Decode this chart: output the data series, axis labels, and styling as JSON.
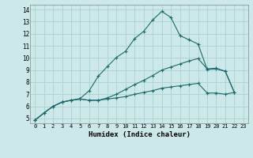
{
  "xlabel": "Humidex (Indice chaleur)",
  "bg_color": "#cce8e8",
  "grid_color": "#aed4d4",
  "line_color": "#1a6b6b",
  "xlim": [
    -0.5,
    23.5
  ],
  "ylim": [
    4.6,
    14.4
  ],
  "xticks": [
    0,
    1,
    2,
    3,
    4,
    5,
    6,
    7,
    8,
    9,
    10,
    11,
    12,
    13,
    14,
    15,
    16,
    17,
    18,
    19,
    20,
    21,
    22,
    23
  ],
  "yticks": [
    5,
    6,
    7,
    8,
    9,
    10,
    11,
    12,
    13,
    14
  ],
  "line1_y": [
    4.85,
    5.45,
    6.0,
    6.35,
    6.5,
    6.65,
    7.3,
    8.5,
    9.3,
    10.05,
    10.55,
    11.6,
    12.2,
    13.15,
    13.85,
    13.35,
    11.85,
    11.5,
    11.15,
    9.05,
    9.1,
    8.9,
    7.15,
    null
  ],
  "line2_y": [
    4.85,
    5.45,
    6.0,
    6.35,
    6.5,
    6.6,
    6.5,
    6.5,
    6.7,
    7.0,
    7.4,
    7.8,
    8.15,
    8.55,
    9.0,
    9.25,
    9.5,
    9.75,
    9.95,
    9.1,
    9.15,
    8.9,
    7.15,
    null
  ],
  "line3_y": [
    4.85,
    5.45,
    6.0,
    6.35,
    6.5,
    6.6,
    6.5,
    6.5,
    6.6,
    6.7,
    6.8,
    7.0,
    7.15,
    7.3,
    7.5,
    7.6,
    7.7,
    7.8,
    7.9,
    7.1,
    7.1,
    7.0,
    7.15,
    null
  ]
}
